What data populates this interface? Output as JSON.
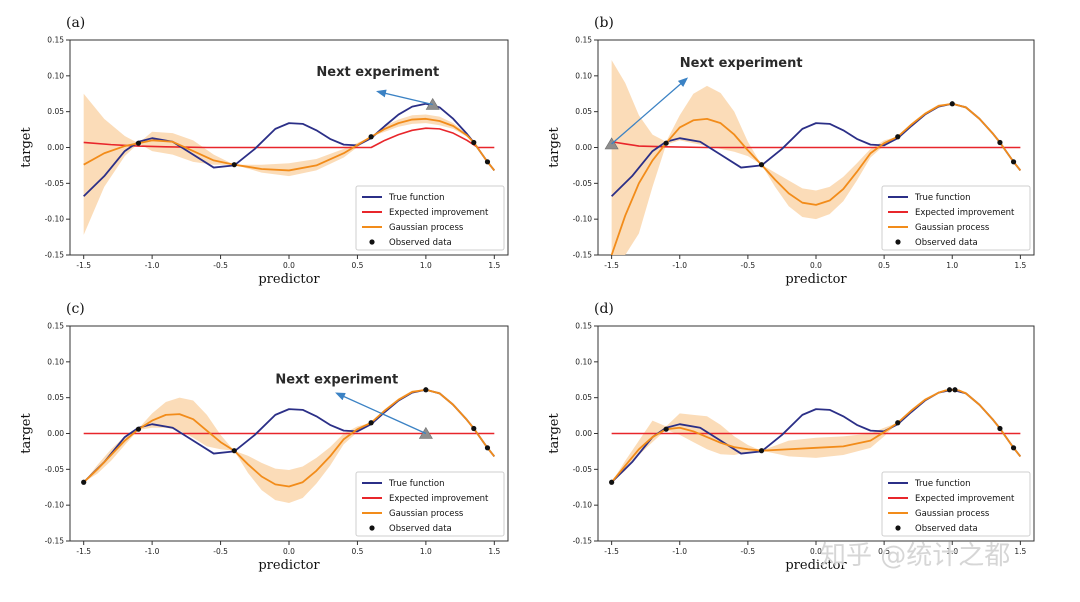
{
  "figure": {
    "watermark": "知乎 @统计之都"
  },
  "legend": {
    "true_function": "True function",
    "expected_improvement": "Expected improvement",
    "gaussian_process": "Gaussian process",
    "observed_data": "Observed data"
  },
  "colors": {
    "true_function": "#2b2f87",
    "expected_improvement": "#e8262b",
    "gaussian_process": "#f28c1a",
    "confidence_band": "#fbd8b0",
    "observed_point": "#111111",
    "next_marker": "#8e8e8e",
    "arrow": "#3b82c4"
  },
  "axes": {
    "xlim": [
      -1.6,
      1.6
    ],
    "ylim": [
      -0.15,
      0.15
    ],
    "xticks": [
      -1.5,
      -1.0,
      -0.5,
      0.0,
      0.5,
      1.0,
      1.5
    ],
    "xtick_labels": [
      "-1.5",
      "-1.0",
      "-0.5",
      "0.0",
      "0.5",
      "1.0",
      "1.5"
    ],
    "yticks": [
      -0.15,
      -0.1,
      -0.05,
      0.0,
      0.05,
      0.1,
      0.15
    ],
    "ytick_labels": [
      "-0.15",
      "-0.10",
      "-0.05",
      "0.00",
      "0.05",
      "0.10",
      "0.15"
    ],
    "xlabel": "predictor",
    "ylabel": "target"
  },
  "chart_data": [
    {
      "panel": "(a)",
      "type": "line",
      "true_function": {
        "name": "True function",
        "x": [
          -1.5,
          -1.35,
          -1.2,
          -1.1,
          -1.0,
          -0.85,
          -0.7,
          -0.55,
          -0.4,
          -0.25,
          -0.1,
          0.0,
          0.1,
          0.2,
          0.3,
          0.4,
          0.5,
          0.6,
          0.7,
          0.8,
          0.9,
          1.0,
          1.1,
          1.2,
          1.3,
          1.35,
          1.45,
          1.5
        ],
        "y": [
          -0.068,
          -0.04,
          -0.005,
          0.008,
          0.013,
          0.008,
          -0.01,
          -0.028,
          -0.025,
          -0.002,
          0.026,
          0.034,
          0.033,
          0.024,
          0.012,
          0.004,
          0.003,
          0.013,
          0.03,
          0.046,
          0.057,
          0.061,
          0.056,
          0.04,
          0.019,
          0.007,
          -0.02,
          -0.032
        ]
      },
      "expected_improvement": {
        "name": "Expected improvement",
        "x": [
          -1.5,
          -1.3,
          -1.1,
          -0.9,
          -0.6,
          0.0,
          0.6,
          0.7,
          0.8,
          0.9,
          1.0,
          1.1,
          1.2,
          1.3,
          1.38,
          1.5
        ],
        "y": [
          0.007,
          0.004,
          0.002,
          0.001,
          0.0,
          0.0,
          0.0,
          0.01,
          0.018,
          0.024,
          0.027,
          0.026,
          0.02,
          0.01,
          0.0,
          0.0
        ]
      },
      "gaussian_process": {
        "name": "Gaussian process",
        "x": [
          -1.5,
          -1.35,
          -1.2,
          -1.1,
          -1.0,
          -0.85,
          -0.7,
          -0.55,
          -0.4,
          -0.2,
          0.0,
          0.2,
          0.4,
          0.6,
          0.7,
          0.8,
          0.9,
          1.0,
          1.1,
          1.2,
          1.3,
          1.35,
          1.45,
          1.5
        ],
        "y": [
          -0.024,
          -0.008,
          0.002,
          0.006,
          0.01,
          0.008,
          -0.005,
          -0.018,
          -0.024,
          -0.03,
          -0.032,
          -0.025,
          -0.008,
          0.015,
          0.026,
          0.034,
          0.039,
          0.04,
          0.037,
          0.03,
          0.017,
          0.007,
          -0.02,
          -0.032
        ],
        "lower": [
          -0.122,
          -0.055,
          -0.012,
          0.006,
          -0.005,
          -0.01,
          -0.02,
          -0.024,
          -0.024,
          -0.035,
          -0.04,
          -0.032,
          -0.014,
          0.015,
          0.022,
          0.029,
          0.033,
          0.034,
          0.031,
          0.026,
          0.015,
          0.007,
          -0.02,
          -0.032
        ],
        "upper": [
          0.075,
          0.04,
          0.016,
          0.006,
          0.022,
          0.02,
          0.01,
          -0.01,
          -0.024,
          -0.024,
          -0.022,
          -0.016,
          -0.002,
          0.015,
          0.03,
          0.039,
          0.045,
          0.046,
          0.043,
          0.034,
          0.019,
          0.007,
          -0.02,
          -0.032
        ]
      },
      "observed": {
        "x": [
          -1.1,
          -0.4,
          0.6,
          1.35,
          1.45
        ],
        "y": [
          0.006,
          -0.024,
          0.015,
          0.007,
          -0.02
        ]
      },
      "next_experiment": {
        "label": "Next experiment",
        "x": 1.05,
        "y": 0.06,
        "text_x": 0.2,
        "text_y": 0.1,
        "arrow_to_x": 0.65,
        "arrow_to_y": 0.078
      }
    },
    {
      "panel": "(b)",
      "type": "line",
      "true_function": {
        "name": "True function",
        "x": [
          -1.5,
          -1.35,
          -1.2,
          -1.1,
          -1.0,
          -0.85,
          -0.7,
          -0.55,
          -0.4,
          -0.25,
          -0.1,
          0.0,
          0.1,
          0.2,
          0.3,
          0.4,
          0.5,
          0.6,
          0.7,
          0.8,
          0.9,
          1.0,
          1.1,
          1.2,
          1.3,
          1.35,
          1.45,
          1.5
        ],
        "y": [
          -0.068,
          -0.04,
          -0.005,
          0.008,
          0.013,
          0.008,
          -0.01,
          -0.028,
          -0.025,
          -0.002,
          0.026,
          0.034,
          0.033,
          0.024,
          0.012,
          0.004,
          0.003,
          0.013,
          0.03,
          0.046,
          0.057,
          0.061,
          0.056,
          0.04,
          0.019,
          0.007,
          -0.02,
          -0.032
        ]
      },
      "expected_improvement": {
        "name": "Expected improvement",
        "x": [
          -1.5,
          -1.4,
          -1.3,
          -1.1,
          -0.8,
          0.0,
          1.0,
          1.5
        ],
        "y": [
          0.008,
          0.005,
          0.002,
          0.001,
          0.0,
          0.0,
          0.0,
          0.0
        ]
      },
      "gaussian_process": {
        "name": "Gaussian process",
        "x": [
          -1.5,
          -1.4,
          -1.3,
          -1.2,
          -1.1,
          -1.0,
          -0.9,
          -0.8,
          -0.7,
          -0.6,
          -0.5,
          -0.4,
          -0.3,
          -0.2,
          -0.1,
          0.0,
          0.1,
          0.2,
          0.3,
          0.4,
          0.5,
          0.6,
          0.7,
          0.8,
          0.9,
          1.0,
          1.1,
          1.2,
          1.3,
          1.35,
          1.45,
          1.5
        ],
        "y": [
          -0.15,
          -0.095,
          -0.05,
          -0.018,
          0.006,
          0.028,
          0.038,
          0.04,
          0.034,
          0.018,
          -0.004,
          -0.024,
          -0.045,
          -0.064,
          -0.077,
          -0.08,
          -0.074,
          -0.058,
          -0.034,
          -0.008,
          0.006,
          0.015,
          0.032,
          0.047,
          0.058,
          0.061,
          0.056,
          0.04,
          0.019,
          0.007,
          -0.02,
          -0.032
        ],
        "lower": [
          -0.15,
          -0.15,
          -0.12,
          -0.055,
          0.004,
          0.01,
          0.006,
          0.002,
          -0.002,
          -0.006,
          -0.012,
          -0.024,
          -0.055,
          -0.082,
          -0.097,
          -0.1,
          -0.093,
          -0.075,
          -0.046,
          -0.014,
          0.003,
          0.015,
          0.03,
          0.045,
          0.056,
          0.061,
          0.054,
          0.038,
          0.018,
          0.007,
          -0.02,
          -0.032
        ],
        "upper": [
          0.122,
          0.09,
          0.045,
          0.018,
          0.008,
          0.045,
          0.075,
          0.086,
          0.076,
          0.05,
          0.008,
          -0.024,
          -0.035,
          -0.046,
          -0.057,
          -0.06,
          -0.055,
          -0.041,
          -0.022,
          -0.002,
          0.01,
          0.015,
          0.034,
          0.049,
          0.06,
          0.061,
          0.058,
          0.042,
          0.02,
          0.007,
          -0.02,
          -0.032
        ]
      },
      "observed": {
        "x": [
          -1.1,
          -0.4,
          0.6,
          1.0,
          1.35,
          1.45
        ],
        "y": [
          0.006,
          -0.024,
          0.015,
          0.061,
          0.007,
          -0.02
        ]
      },
      "next_experiment": {
        "label": "Next experiment",
        "x": -1.5,
        "y": 0.005,
        "text_x": -1.0,
        "text_y": 0.112,
        "arrow_to_x": -0.95,
        "arrow_to_y": 0.096
      }
    },
    {
      "panel": "(c)",
      "type": "line",
      "true_function": {
        "name": "True function",
        "x": [
          -1.5,
          -1.35,
          -1.2,
          -1.1,
          -1.0,
          -0.85,
          -0.7,
          -0.55,
          -0.4,
          -0.25,
          -0.1,
          0.0,
          0.1,
          0.2,
          0.3,
          0.4,
          0.5,
          0.6,
          0.7,
          0.8,
          0.9,
          1.0,
          1.1,
          1.2,
          1.3,
          1.35,
          1.45,
          1.5
        ],
        "y": [
          -0.068,
          -0.04,
          -0.005,
          0.008,
          0.013,
          0.008,
          -0.01,
          -0.028,
          -0.025,
          -0.002,
          0.026,
          0.034,
          0.033,
          0.024,
          0.012,
          0.004,
          0.003,
          0.013,
          0.03,
          0.046,
          0.057,
          0.061,
          0.056,
          0.04,
          0.019,
          0.007,
          -0.02,
          -0.032
        ]
      },
      "expected_improvement": {
        "name": "Expected improvement",
        "x": [
          -1.5,
          1.5
        ],
        "y": [
          0.0,
          0.0
        ]
      },
      "gaussian_process": {
        "name": "Gaussian process",
        "x": [
          -1.5,
          -1.4,
          -1.3,
          -1.2,
          -1.1,
          -1.0,
          -0.9,
          -0.8,
          -0.7,
          -0.6,
          -0.5,
          -0.4,
          -0.3,
          -0.2,
          -0.1,
          0.0,
          0.1,
          0.2,
          0.3,
          0.4,
          0.5,
          0.6,
          0.7,
          0.8,
          0.9,
          1.0,
          1.1,
          1.2,
          1.3,
          1.35,
          1.45,
          1.5
        ],
        "y": [
          -0.068,
          -0.05,
          -0.03,
          -0.01,
          0.006,
          0.018,
          0.026,
          0.027,
          0.02,
          0.004,
          -0.012,
          -0.024,
          -0.043,
          -0.06,
          -0.071,
          -0.074,
          -0.068,
          -0.052,
          -0.032,
          -0.008,
          0.006,
          0.015,
          0.032,
          0.047,
          0.058,
          0.061,
          0.056,
          0.04,
          0.019,
          0.007,
          -0.02,
          -0.032
        ],
        "lower": [
          -0.068,
          -0.056,
          -0.038,
          -0.016,
          0.005,
          0.008,
          0.008,
          0.004,
          -0.006,
          -0.018,
          -0.022,
          -0.024,
          -0.055,
          -0.079,
          -0.093,
          -0.097,
          -0.09,
          -0.07,
          -0.045,
          -0.015,
          0.002,
          0.015,
          0.03,
          0.045,
          0.056,
          0.061,
          0.054,
          0.038,
          0.018,
          0.007,
          -0.02,
          -0.032
        ],
        "upper": [
          -0.068,
          -0.044,
          -0.022,
          -0.004,
          0.007,
          0.028,
          0.044,
          0.05,
          0.046,
          0.026,
          -0.002,
          -0.024,
          -0.031,
          -0.041,
          -0.049,
          -0.051,
          -0.046,
          -0.034,
          -0.019,
          0.0,
          0.01,
          0.015,
          0.034,
          0.049,
          0.06,
          0.061,
          0.058,
          0.042,
          0.02,
          0.007,
          -0.02,
          -0.032
        ]
      },
      "observed": {
        "x": [
          -1.5,
          -1.1,
          -0.4,
          0.6,
          1.0,
          1.35,
          1.45
        ],
        "y": [
          -0.068,
          0.006,
          -0.024,
          0.015,
          0.061,
          0.007,
          -0.02
        ]
      },
      "next_experiment": {
        "label": "Next experiment",
        "x": 1.0,
        "y": 0.0,
        "text_x": -0.1,
        "text_y": 0.07,
        "arrow_to_x": 0.35,
        "arrow_to_y": 0.056
      }
    },
    {
      "panel": "(d)",
      "type": "line",
      "true_function": {
        "name": "True function",
        "x": [
          -1.5,
          -1.35,
          -1.2,
          -1.1,
          -1.0,
          -0.85,
          -0.7,
          -0.55,
          -0.4,
          -0.25,
          -0.1,
          0.0,
          0.1,
          0.2,
          0.3,
          0.4,
          0.5,
          0.6,
          0.7,
          0.8,
          0.9,
          1.0,
          1.1,
          1.2,
          1.3,
          1.35,
          1.45,
          1.5
        ],
        "y": [
          -0.068,
          -0.04,
          -0.005,
          0.008,
          0.013,
          0.008,
          -0.01,
          -0.028,
          -0.025,
          -0.002,
          0.026,
          0.034,
          0.033,
          0.024,
          0.012,
          0.004,
          0.003,
          0.013,
          0.03,
          0.046,
          0.057,
          0.061,
          0.056,
          0.04,
          0.019,
          0.007,
          -0.02,
          -0.032
        ]
      },
      "expected_improvement": {
        "name": "Expected improvement",
        "x": [
          -1.5,
          1.5
        ],
        "y": [
          0.0,
          0.0
        ]
      },
      "gaussian_process": {
        "name": "Gaussian process",
        "x": [
          -1.5,
          -1.4,
          -1.3,
          -1.2,
          -1.1,
          -1.0,
          -0.9,
          -0.8,
          -0.7,
          -0.6,
          -0.5,
          -0.4,
          -0.2,
          0.0,
          0.2,
          0.4,
          0.5,
          0.6,
          0.7,
          0.8,
          0.9,
          0.95,
          1.0,
          1.05,
          1.1,
          1.2,
          1.3,
          1.35,
          1.45,
          1.5
        ],
        "y": [
          -0.068,
          -0.045,
          -0.022,
          -0.005,
          0.006,
          0.008,
          0.003,
          -0.005,
          -0.013,
          -0.019,
          -0.022,
          -0.024,
          -0.022,
          -0.02,
          -0.018,
          -0.01,
          0.002,
          0.015,
          0.032,
          0.047,
          0.057,
          0.06,
          0.061,
          0.06,
          0.056,
          0.04,
          0.019,
          0.007,
          -0.02,
          -0.032
        ],
        "lower": [
          -0.068,
          -0.052,
          -0.03,
          -0.012,
          0.005,
          -0.002,
          -0.012,
          -0.022,
          -0.029,
          -0.03,
          -0.026,
          -0.024,
          -0.032,
          -0.034,
          -0.03,
          -0.02,
          -0.004,
          0.015,
          0.03,
          0.045,
          0.056,
          0.06,
          0.061,
          0.06,
          0.054,
          0.038,
          0.018,
          0.007,
          -0.02,
          -0.032
        ],
        "upper": [
          -0.068,
          -0.038,
          -0.01,
          0.018,
          0.01,
          0.028,
          0.026,
          0.024,
          0.012,
          -0.004,
          -0.016,
          -0.024,
          -0.01,
          -0.006,
          -0.004,
          0.0,
          0.008,
          0.015,
          0.034,
          0.049,
          0.058,
          0.06,
          0.061,
          0.06,
          0.058,
          0.042,
          0.02,
          0.007,
          -0.02,
          -0.032
        ]
      },
      "observed": {
        "x": [
          -1.5,
          -1.1,
          -0.4,
          0.6,
          0.98,
          1.02,
          1.35,
          1.45
        ],
        "y": [
          -0.068,
          0.006,
          -0.024,
          0.015,
          0.061,
          0.061,
          0.007,
          -0.02
        ]
      },
      "next_experiment": null
    }
  ]
}
